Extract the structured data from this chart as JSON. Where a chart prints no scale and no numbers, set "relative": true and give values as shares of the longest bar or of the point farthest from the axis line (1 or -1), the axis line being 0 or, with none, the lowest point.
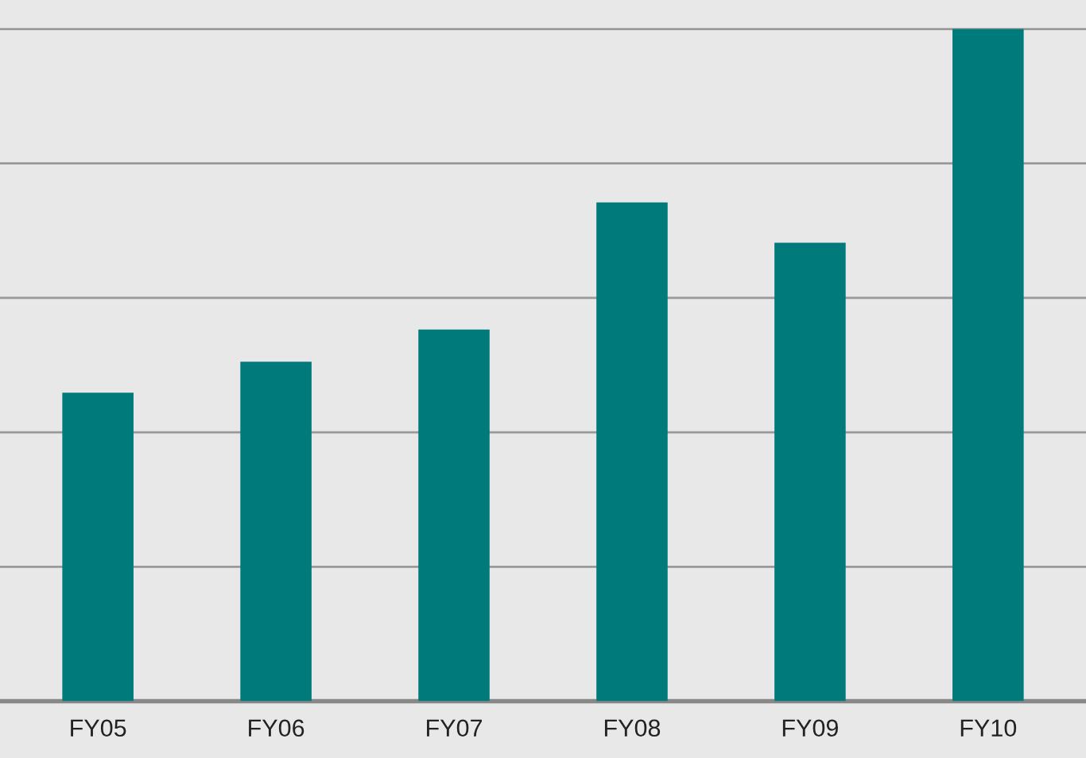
{
  "chart_data": {
    "type": "bar",
    "relative": true,
    "categories": [
      "FY05",
      "FY06",
      "FY07",
      "FY08",
      "FY09",
      "FY10"
    ],
    "values": [
      0.459,
      0.505,
      0.553,
      0.742,
      0.682,
      1
    ],
    "color": "#007a7b",
    "grid": "y"
  }
}
